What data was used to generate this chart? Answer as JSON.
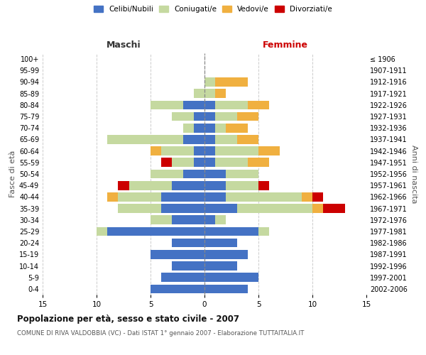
{
  "age_groups": [
    "0-4",
    "5-9",
    "10-14",
    "15-19",
    "20-24",
    "25-29",
    "30-34",
    "35-39",
    "40-44",
    "45-49",
    "50-54",
    "55-59",
    "60-64",
    "65-69",
    "70-74",
    "75-79",
    "80-84",
    "85-89",
    "90-94",
    "95-99",
    "100+"
  ],
  "birth_years": [
    "2002-2006",
    "1997-2001",
    "1992-1996",
    "1987-1991",
    "1982-1986",
    "1977-1981",
    "1972-1976",
    "1967-1971",
    "1962-1966",
    "1957-1961",
    "1952-1956",
    "1947-1951",
    "1942-1946",
    "1937-1941",
    "1932-1936",
    "1927-1931",
    "1922-1926",
    "1917-1921",
    "1912-1916",
    "1907-1911",
    "≤ 1906"
  ],
  "maschi": {
    "celibi": [
      5,
      4,
      3,
      5,
      3,
      9,
      3,
      4,
      4,
      3,
      2,
      1,
      1,
      2,
      1,
      1,
      2,
      0,
      0,
      0,
      0
    ],
    "coniugati": [
      0,
      0,
      0,
      0,
      0,
      1,
      2,
      4,
      4,
      4,
      3,
      2,
      3,
      7,
      1,
      2,
      3,
      1,
      0,
      0,
      0
    ],
    "vedovi": [
      0,
      0,
      0,
      0,
      0,
      0,
      0,
      0,
      1,
      0,
      0,
      0,
      1,
      0,
      0,
      0,
      0,
      0,
      0,
      0,
      0
    ],
    "divorziati": [
      0,
      0,
      0,
      0,
      0,
      0,
      0,
      0,
      0,
      1,
      0,
      1,
      0,
      0,
      0,
      0,
      0,
      0,
      0,
      0,
      0
    ]
  },
  "femmine": {
    "nubili": [
      4,
      5,
      3,
      4,
      3,
      5,
      1,
      3,
      2,
      2,
      2,
      1,
      1,
      1,
      1,
      1,
      1,
      0,
      0,
      0,
      0
    ],
    "coniugate": [
      0,
      0,
      0,
      0,
      0,
      1,
      1,
      7,
      7,
      3,
      3,
      3,
      4,
      2,
      1,
      2,
      3,
      1,
      1,
      0,
      0
    ],
    "vedove": [
      0,
      0,
      0,
      0,
      0,
      0,
      0,
      1,
      1,
      0,
      0,
      2,
      2,
      2,
      2,
      2,
      2,
      1,
      3,
      0,
      0
    ],
    "divorziate": [
      0,
      0,
      0,
      0,
      0,
      0,
      0,
      2,
      1,
      1,
      0,
      0,
      0,
      0,
      0,
      0,
      0,
      0,
      0,
      0,
      0
    ]
  },
  "colors": {
    "celibi": "#4472c4",
    "coniugati": "#c5d9a0",
    "vedovi": "#f0b040",
    "divorziati": "#cc0000"
  },
  "title": "Popolazione per età, sesso e stato civile - 2007",
  "subtitle": "COMUNE DI RIVA VALDOBBIA (VC) - Dati ISTAT 1° gennaio 2007 - Elaborazione TUTTAITALIA.IT",
  "xlabel_left": "Maschi",
  "xlabel_right": "Femmine",
  "ylabel_left": "Fasce di età",
  "ylabel_right": "Anni di nascita",
  "xlim": 15,
  "legend_labels": [
    "Celibi/Nubili",
    "Coniugati/e",
    "Vedovi/e",
    "Divorziati/e"
  ],
  "background_color": "#ffffff",
  "grid_color": "#cccccc",
  "maschi_label_color": "#333333",
  "femmine_label_color": "#cc0000"
}
